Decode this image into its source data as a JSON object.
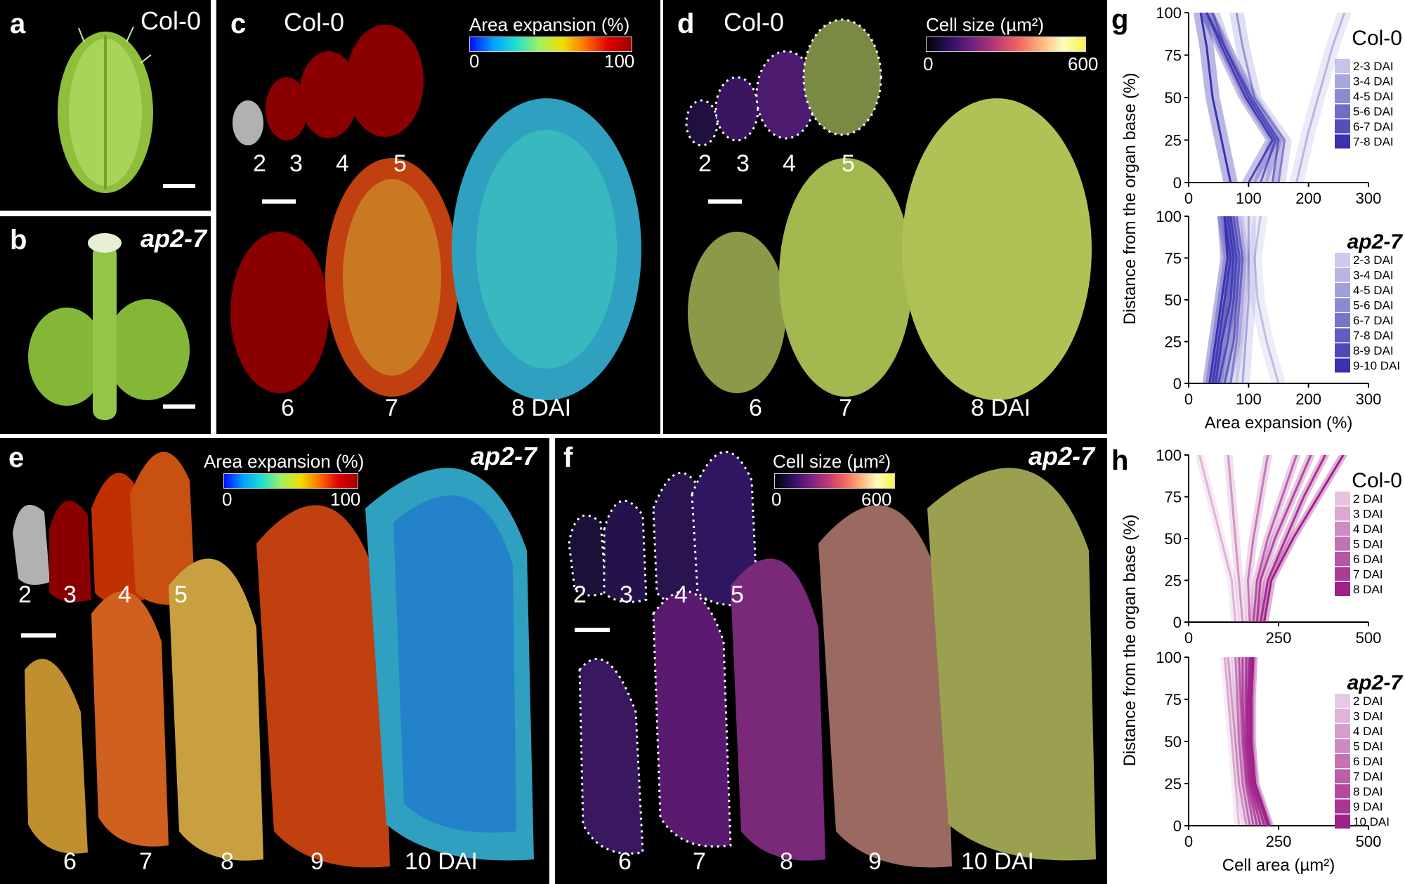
{
  "panels": {
    "a": {
      "label": "a",
      "genotype": "Col-0"
    },
    "b": {
      "label": "b",
      "genotype": "ap2-7"
    },
    "c": {
      "label": "c",
      "genotype": "Col-0",
      "colorbar_title": "Area expansion (%)",
      "colorbar_min": "0",
      "colorbar_max": "100",
      "stages": [
        "2",
        "3",
        "4",
        "5",
        "6",
        "7",
        "8 DAI"
      ]
    },
    "d": {
      "label": "d",
      "genotype": "Col-0",
      "colorbar_title": "Cell size (µm²)",
      "colorbar_min": "0",
      "colorbar_max": "600",
      "stages": [
        "2",
        "3",
        "4",
        "5",
        "6",
        "7",
        "8 DAI"
      ]
    },
    "e": {
      "label": "e",
      "genotype": "ap2-7",
      "colorbar_title": "Area expansion (%)",
      "colorbar_min": "0",
      "colorbar_max": "100",
      "stages": [
        "2",
        "3",
        "4",
        "5",
        "6",
        "7",
        "8",
        "9",
        "10 DAI"
      ]
    },
    "f": {
      "label": "f",
      "genotype": "ap2-7",
      "colorbar_title": "Cell size (µm²)",
      "colorbar_min": "0",
      "colorbar_max": "600",
      "stages": [
        "2",
        "3",
        "4",
        "5",
        "6",
        "7",
        "8",
        "9",
        "10 DAI"
      ]
    }
  },
  "colors": {
    "heat_low": "#1040ff",
    "heat_mid": "#30c8c0",
    "heat_high": "#a00000",
    "cell_green": "#b7c95a",
    "cell_purple": "#5a1a6a",
    "line_blue": "#3a32b0",
    "line_magenta": "#a0208a"
  },
  "chart_data": [
    {
      "panel": "g",
      "type": "line",
      "title": "Col-0",
      "xlabel": "",
      "ylabel": "Distance from the organ base (%)",
      "xlim": [
        0,
        300
      ],
      "ylim": [
        0,
        100
      ],
      "xticks": [
        "0",
        "100",
        "200",
        "300"
      ],
      "yticks": [
        "0",
        "25",
        "50",
        "75",
        "100"
      ],
      "legend": "right",
      "series": [
        {
          "name": "2-3 DAI",
          "x": [
            180,
            200,
            220,
            240,
            260
          ],
          "y": [
            0,
            30,
            55,
            80,
            100
          ]
        },
        {
          "name": "3-4 DAI",
          "x": [
            150,
            160,
            110,
            90,
            80
          ],
          "y": [
            0,
            25,
            50,
            80,
            100
          ]
        },
        {
          "name": "4-5 DAI",
          "x": [
            140,
            150,
            105,
            60,
            40
          ],
          "y": [
            0,
            25,
            50,
            80,
            100
          ]
        },
        {
          "name": "5-6 DAI",
          "x": [
            120,
            145,
            100,
            60,
            30
          ],
          "y": [
            0,
            25,
            50,
            80,
            100
          ]
        },
        {
          "name": "6-7 DAI",
          "x": [
            100,
            140,
            95,
            55,
            30
          ],
          "y": [
            0,
            25,
            50,
            80,
            100
          ]
        },
        {
          "name": "7-8 DAI",
          "x": [
            70,
            55,
            40,
            30,
            20
          ],
          "y": [
            0,
            25,
            50,
            80,
            100
          ]
        }
      ]
    },
    {
      "panel": "g",
      "type": "line",
      "title": "ap2-7",
      "xlabel": "Area expansion (%)",
      "ylabel": "Distance from the organ base (%)",
      "xlim": [
        0,
        300
      ],
      "ylim": [
        0,
        100
      ],
      "xticks": [
        "0",
        "100",
        "200",
        "300"
      ],
      "yticks": [
        "0",
        "25",
        "50",
        "75",
        "100"
      ],
      "legend": "right",
      "series": [
        {
          "name": "2-3 DAI",
          "x": [
            150,
            130,
            115,
            110,
            120
          ],
          "y": [
            0,
            25,
            50,
            75,
            100
          ]
        },
        {
          "name": "3-4 DAI",
          "x": [
            90,
            95,
            100,
            100,
            100
          ],
          "y": [
            0,
            25,
            50,
            75,
            100
          ]
        },
        {
          "name": "4-5 DAI",
          "x": [
            70,
            80,
            85,
            90,
            80
          ],
          "y": [
            0,
            25,
            50,
            75,
            100
          ]
        },
        {
          "name": "5-6 DAI",
          "x": [
            60,
            75,
            80,
            85,
            75
          ],
          "y": [
            0,
            25,
            50,
            75,
            100
          ]
        },
        {
          "name": "6-7 DAI",
          "x": [
            50,
            65,
            75,
            80,
            70
          ],
          "y": [
            0,
            25,
            50,
            75,
            100
          ]
        },
        {
          "name": "7-8 DAI",
          "x": [
            45,
            55,
            70,
            75,
            65
          ],
          "y": [
            0,
            25,
            50,
            75,
            100
          ]
        },
        {
          "name": "8-9 DAI",
          "x": [
            40,
            50,
            60,
            70,
            60
          ],
          "y": [
            0,
            25,
            50,
            75,
            100
          ]
        },
        {
          "name": "9-10 DAI",
          "x": [
            35,
            45,
            55,
            65,
            60
          ],
          "y": [
            0,
            25,
            50,
            75,
            100
          ]
        }
      ]
    },
    {
      "panel": "h",
      "type": "line",
      "title": "Col-0",
      "xlabel": "",
      "ylabel": "Distance from the organ base (%)",
      "xlim": [
        0,
        500
      ],
      "ylim": [
        0,
        100
      ],
      "xticks": [
        "0",
        "250",
        "500"
      ],
      "yticks": [
        "0",
        "25",
        "50",
        "75",
        "100"
      ],
      "legend": "right",
      "series": [
        {
          "name": "2 DAI",
          "x": [
            130,
            120,
            90,
            60,
            30
          ],
          "y": [
            0,
            25,
            50,
            75,
            100
          ]
        },
        {
          "name": "3 DAI",
          "x": [
            150,
            140,
            130,
            120,
            110
          ],
          "y": [
            0,
            25,
            50,
            75,
            100
          ]
        },
        {
          "name": "4 DAI",
          "x": [
            170,
            165,
            180,
            200,
            220
          ],
          "y": [
            0,
            25,
            50,
            75,
            100
          ]
        },
        {
          "name": "5 DAI",
          "x": [
            180,
            190,
            220,
            260,
            300
          ],
          "y": [
            0,
            25,
            50,
            75,
            100
          ]
        },
        {
          "name": "6 DAI",
          "x": [
            190,
            200,
            240,
            290,
            340
          ],
          "y": [
            0,
            25,
            50,
            75,
            100
          ]
        },
        {
          "name": "7 DAI",
          "x": [
            200,
            220,
            270,
            320,
            380
          ],
          "y": [
            0,
            25,
            50,
            75,
            100
          ]
        },
        {
          "name": "8 DAI",
          "x": [
            210,
            230,
            290,
            360,
            430
          ],
          "y": [
            0,
            25,
            50,
            75,
            100
          ]
        }
      ]
    },
    {
      "panel": "h",
      "type": "line",
      "title": "ap2-7",
      "xlabel": "Cell area (µm²)",
      "ylabel": "Distance from the organ base (%)",
      "xlim": [
        0,
        500
      ],
      "ylim": [
        0,
        100
      ],
      "xticks": [
        "0",
        "250",
        "500"
      ],
      "yticks": [
        "0",
        "25",
        "50",
        "75",
        "100"
      ],
      "legend": "right",
      "series": [
        {
          "name": "2 DAI",
          "x": [
            140,
            130,
            120,
            110,
            100
          ],
          "y": [
            0,
            25,
            50,
            75,
            100
          ]
        },
        {
          "name": "3 DAI",
          "x": [
            160,
            140,
            130,
            120,
            110
          ],
          "y": [
            0,
            25,
            50,
            75,
            100
          ]
        },
        {
          "name": "4 DAI",
          "x": [
            170,
            150,
            140,
            135,
            130
          ],
          "y": [
            0,
            25,
            50,
            75,
            100
          ]
        },
        {
          "name": "5 DAI",
          "x": [
            180,
            160,
            150,
            145,
            140
          ],
          "y": [
            0,
            25,
            50,
            75,
            100
          ]
        },
        {
          "name": "6 DAI",
          "x": [
            190,
            165,
            155,
            150,
            150
          ],
          "y": [
            0,
            25,
            50,
            75,
            100
          ]
        },
        {
          "name": "7 DAI",
          "x": [
            200,
            170,
            160,
            160,
            160
          ],
          "y": [
            0,
            25,
            50,
            75,
            100
          ]
        },
        {
          "name": "8 DAI",
          "x": [
            210,
            175,
            165,
            165,
            170
          ],
          "y": [
            0,
            25,
            50,
            75,
            100
          ]
        },
        {
          "name": "9 DAI",
          "x": [
            220,
            180,
            170,
            170,
            175
          ],
          "y": [
            0,
            25,
            50,
            75,
            100
          ]
        },
        {
          "name": "10 DAI",
          "x": [
            225,
            185,
            175,
            175,
            180
          ],
          "y": [
            0,
            25,
            50,
            75,
            100
          ]
        }
      ]
    }
  ]
}
